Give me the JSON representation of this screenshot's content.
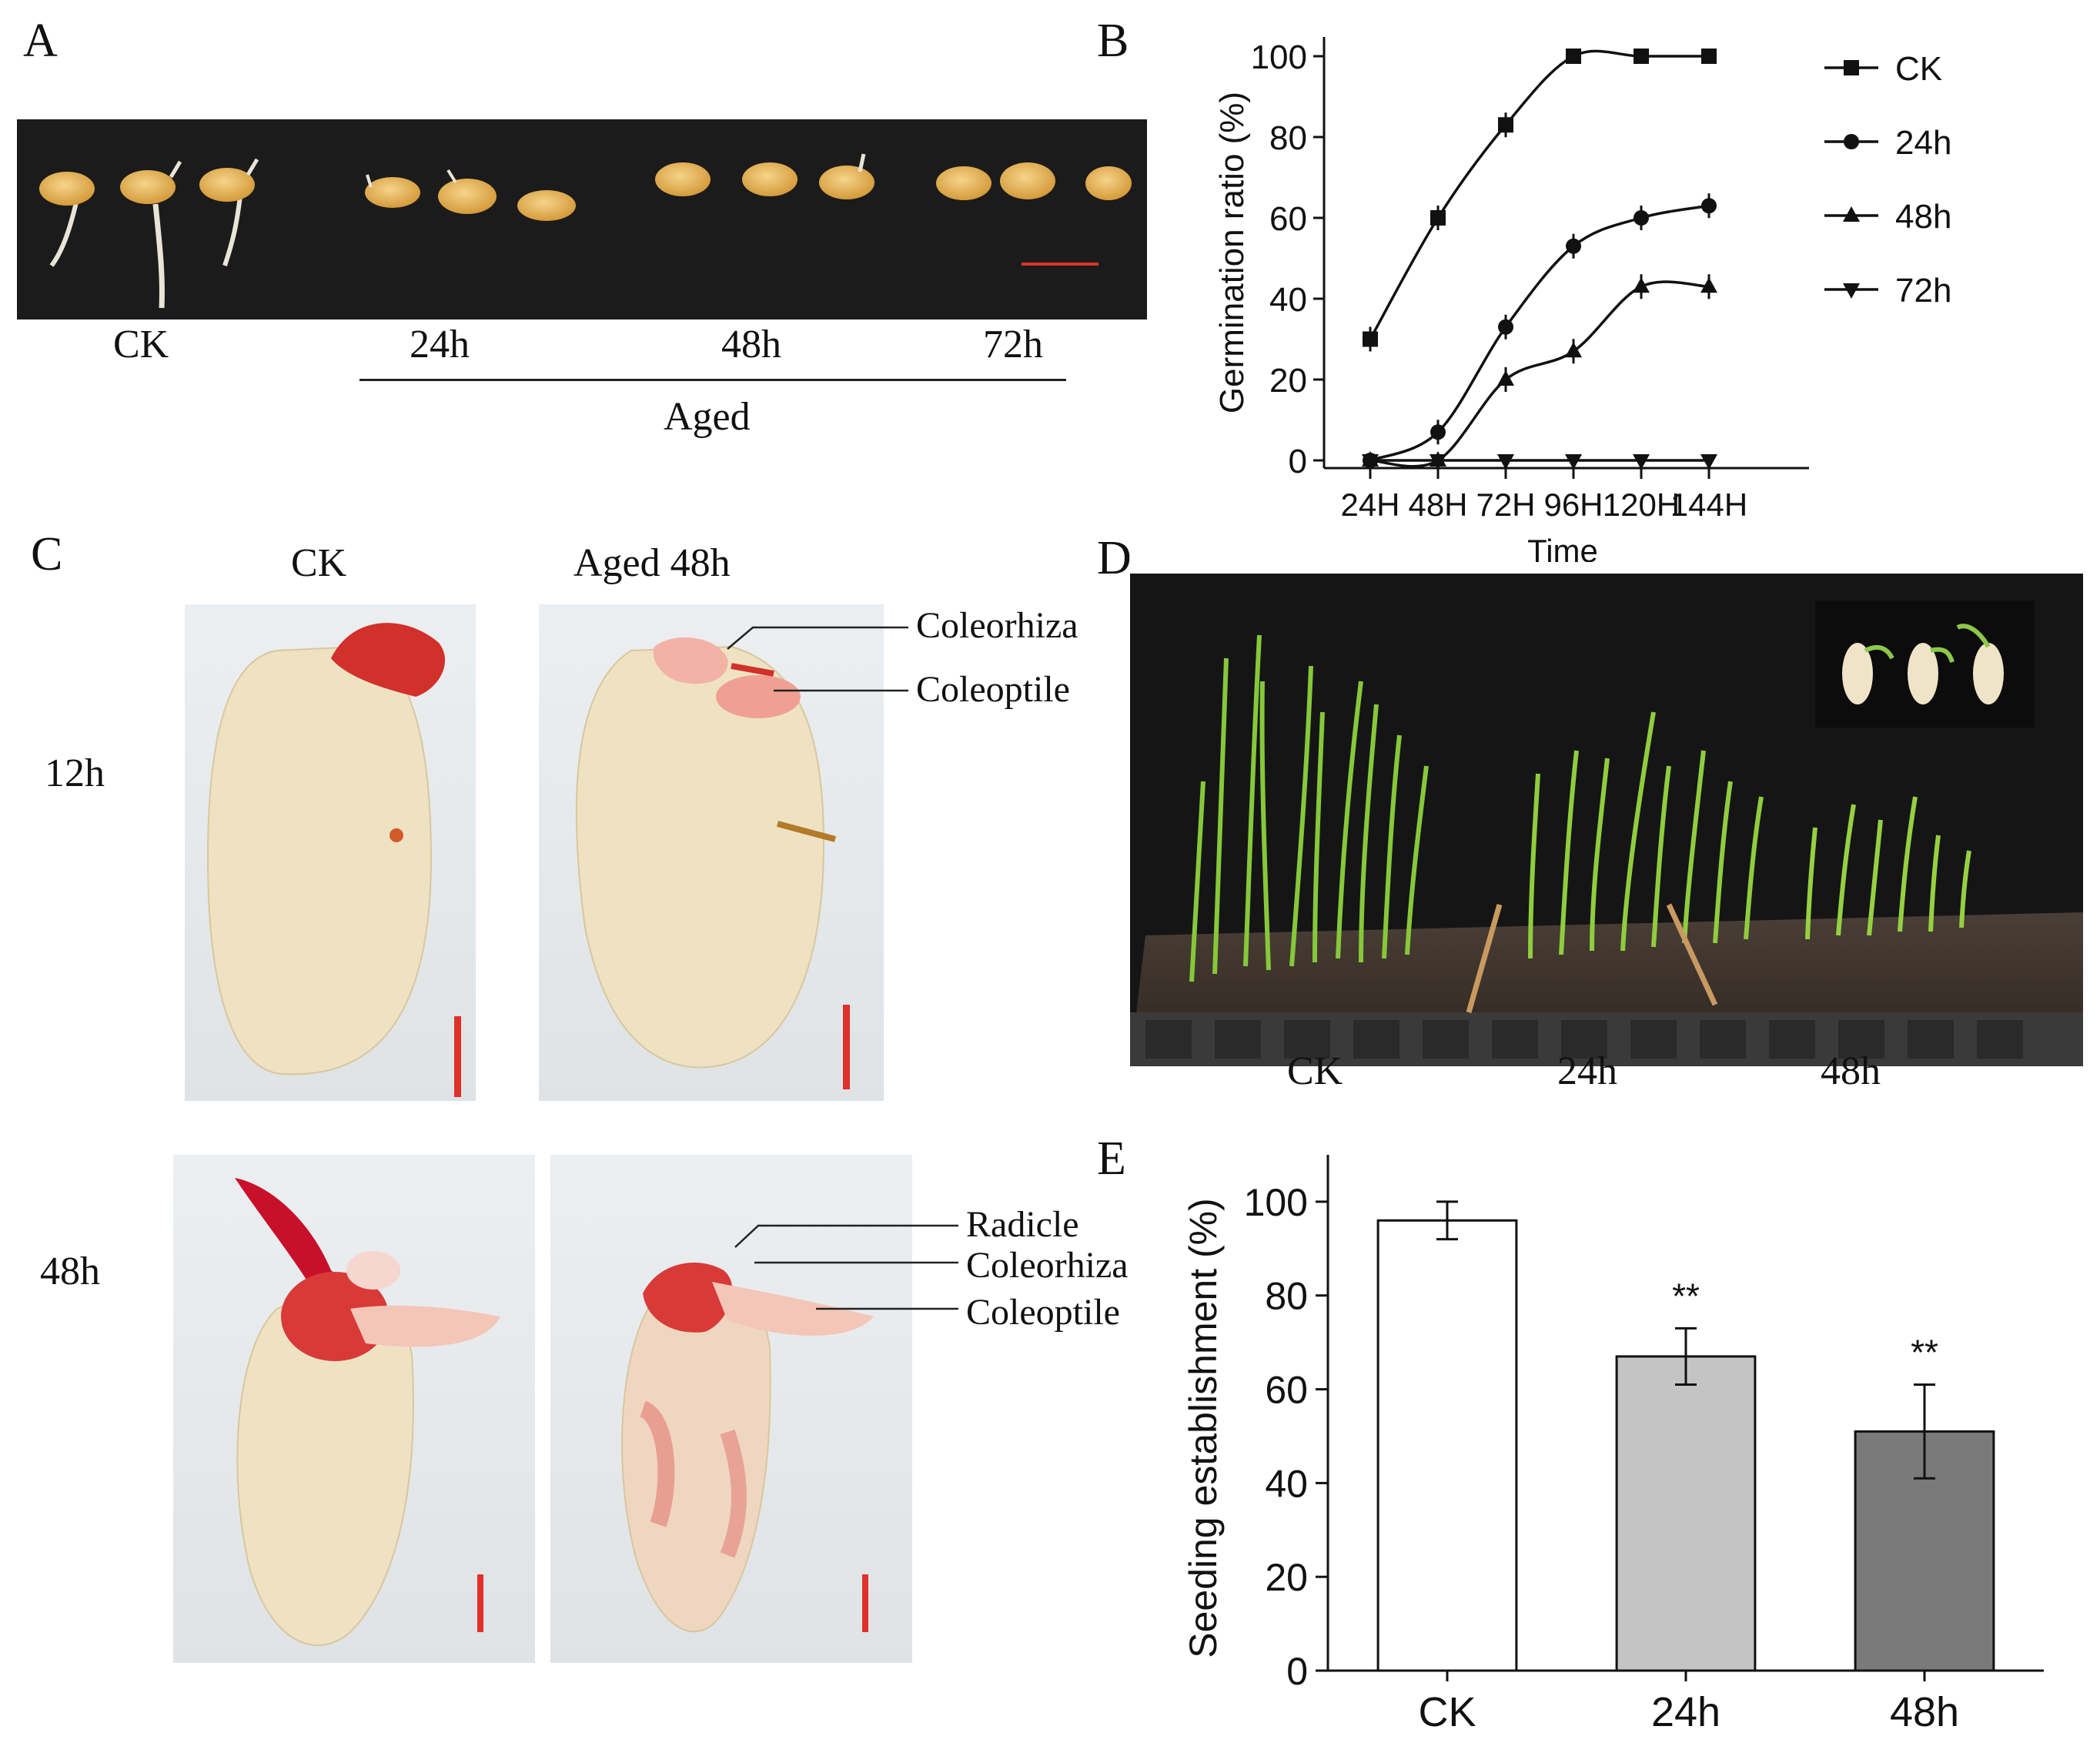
{
  "panels": {
    "A": {
      "letter": "A",
      "labels": [
        "CK",
        "24h",
        "48h",
        "72h"
      ],
      "group_label": "Aged"
    },
    "B": {
      "letter": "B"
    },
    "C": {
      "letter": "C",
      "col_headers": [
        "CK",
        "Aged 48h"
      ],
      "row_labels": [
        "12h",
        "48h"
      ],
      "annotations_12h": [
        "Coleorhiza",
        "Coleoptile"
      ],
      "annotations_48h": [
        "Radicle",
        "Coleorhiza",
        "Coleoptile"
      ]
    },
    "D": {
      "letter": "D",
      "labels": [
        "CK",
        "24h",
        "48h"
      ]
    },
    "E": {
      "letter": "E"
    }
  },
  "colors": {
    "photo_bg_dark": "#1b1b1b",
    "seed_cream": "#efe2c0",
    "stain_red": "#d2302a",
    "scale_bar": "#e0302a",
    "bar_ck": "#ffffff",
    "bar_24h": "#c4c4c4",
    "bar_48h": "#7a7a7a"
  },
  "chart_data": [
    {
      "id": "B",
      "type": "line",
      "title": "",
      "xlabel": "Time",
      "ylabel": "Germination ratio (%)",
      "categories": [
        "24H",
        "48H",
        "72H",
        "96H",
        "120H",
        "144H"
      ],
      "ylim": [
        0,
        100
      ],
      "yticks": [
        0,
        20,
        40,
        60,
        80,
        100
      ],
      "legend_position": "top-right",
      "series": [
        {
          "name": "CK",
          "marker": "square",
          "values": [
            30,
            60,
            83,
            100,
            100,
            100
          ]
        },
        {
          "name": "24h",
          "marker": "circle",
          "values": [
            0,
            7,
            33,
            53,
            60,
            63
          ]
        },
        {
          "name": "48h",
          "marker": "triangle-up",
          "values": [
            0,
            0,
            20,
            27,
            43,
            43
          ]
        },
        {
          "name": "72h",
          "marker": "triangle-down",
          "values": [
            0,
            0,
            0,
            0,
            0,
            0
          ]
        }
      ]
    },
    {
      "id": "E",
      "type": "bar",
      "title": "",
      "xlabel": "",
      "ylabel": "Seeding establishment (%)",
      "categories": [
        "CK",
        "24h",
        "48h"
      ],
      "values": [
        96,
        67,
        51
      ],
      "errors": [
        4,
        6,
        10
      ],
      "significance": [
        "",
        "**",
        "**"
      ],
      "ylim": [
        0,
        110
      ],
      "yticks": [
        0,
        20,
        40,
        60,
        80,
        100
      ]
    }
  ]
}
